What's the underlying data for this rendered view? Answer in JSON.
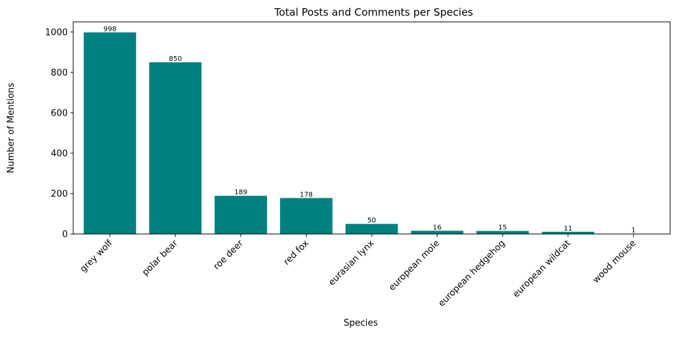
{
  "chart_data": {
    "type": "bar",
    "title": "Total Posts and Comments per Species",
    "xlabel": "Species",
    "ylabel": "Number of Mentions",
    "categories": [
      "grey wolf",
      "polar bear",
      "roe deer",
      "red fox",
      "eurasian lynx",
      "european mole",
      "european hedgehog",
      "european wildcat",
      "wood mouse"
    ],
    "values": [
      998,
      850,
      189,
      178,
      50,
      16,
      15,
      11,
      1
    ],
    "ylim": [
      0,
      1050
    ],
    "yticks": [
      0,
      200,
      400,
      600,
      800,
      1000
    ],
    "grid": false,
    "legend": "none",
    "bar_color": "#008080",
    "data_labels": true
  }
}
